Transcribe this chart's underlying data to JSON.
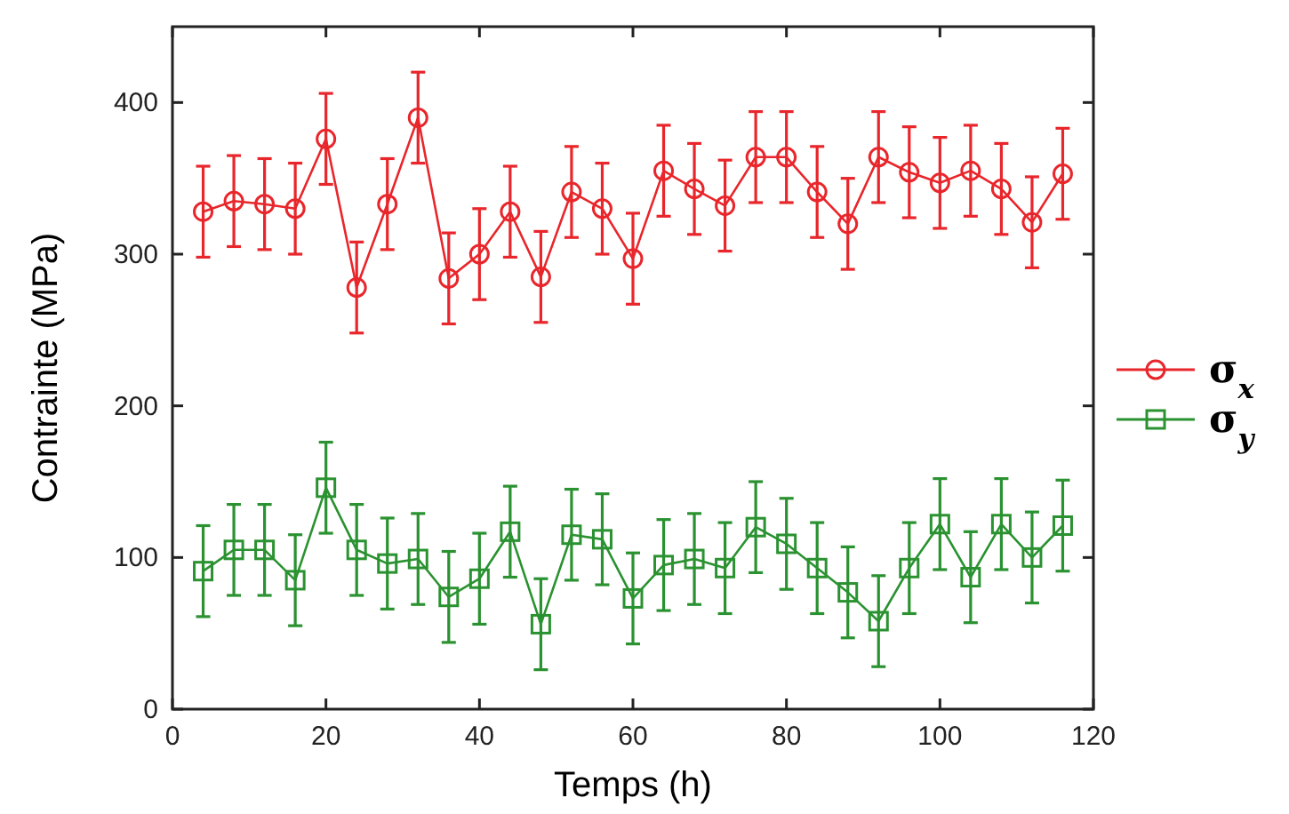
{
  "chart_data": {
    "type": "line",
    "xlabel": "Temps (h)",
    "ylabel": "Contrainte (MPa)",
    "x": [
      4,
      8,
      12,
      16,
      20,
      24,
      28,
      32,
      36,
      40,
      44,
      48,
      52,
      56,
      60,
      64,
      68,
      72,
      76,
      80,
      84,
      88,
      92,
      96,
      100,
      104,
      108,
      112,
      116
    ],
    "xlim": [
      0,
      120
    ],
    "ylim": [
      0,
      450
    ],
    "xticks": [
      0,
      20,
      40,
      60,
      80,
      100,
      120
    ],
    "yticks": [
      0,
      100,
      200,
      300,
      400
    ],
    "grid": false,
    "legend": "right",
    "line_style": "solid",
    "series": [
      {
        "name": "σ$_{x}$",
        "color": "#e8262b",
        "marker": "circle",
        "values": [
          328,
          335,
          333,
          330,
          376,
          278,
          333,
          390,
          284,
          300,
          328,
          285,
          341,
          330,
          297,
          355,
          343,
          332,
          364,
          364,
          341,
          320,
          364,
          354,
          347,
          355,
          343,
          321,
          353
        ],
        "errors": [
          30,
          30,
          30,
          30,
          30,
          30,
          30,
          30,
          30,
          30,
          30,
          30,
          30,
          30,
          30,
          30,
          30,
          30,
          30,
          30,
          30,
          30,
          30,
          30,
          30,
          30,
          30,
          30,
          30
        ]
      },
      {
        "name": "σ$_{y}$",
        "color": "#2a9230",
        "marker": "square",
        "values": [
          91,
          105,
          105,
          85,
          146,
          105,
          96,
          99,
          74,
          86,
          117,
          56,
          115,
          112,
          73,
          95,
          99,
          93,
          120,
          109,
          93,
          77,
          58,
          93,
          122,
          87,
          122,
          100,
          121
        ],
        "errors": [
          30,
          30,
          30,
          30,
          30,
          30,
          30,
          30,
          30,
          30,
          30,
          30,
          30,
          30,
          30,
          30,
          30,
          30,
          30,
          30,
          30,
          30,
          30,
          30,
          30,
          30,
          30,
          30,
          30
        ]
      }
    ]
  }
}
